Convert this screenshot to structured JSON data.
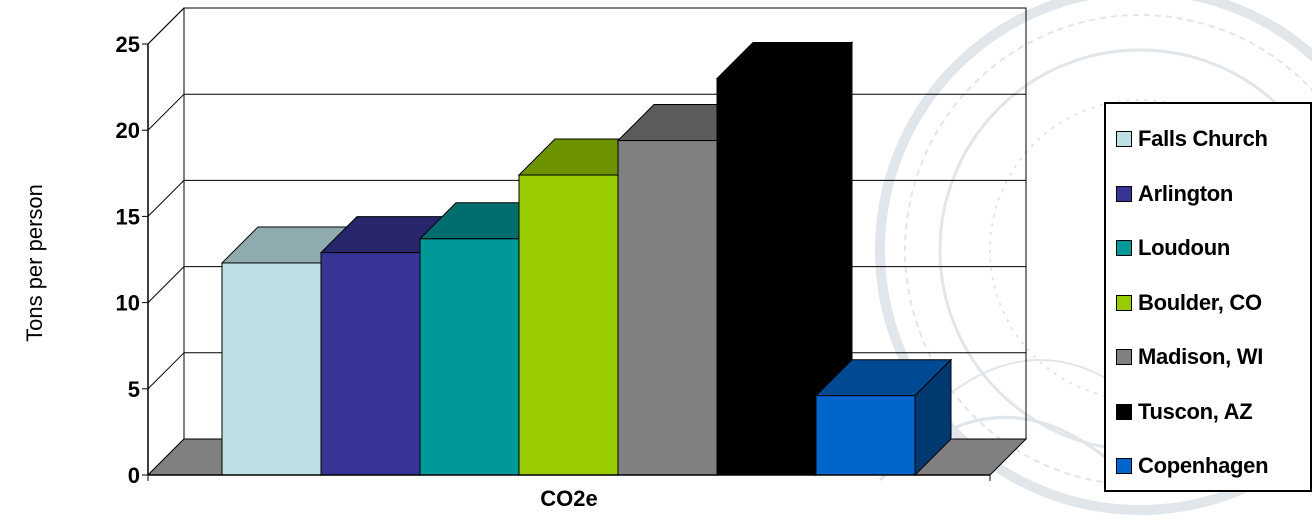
{
  "chart_data": {
    "type": "bar",
    "subtype": "3d-clustered-column",
    "categories": [
      "CO2e"
    ],
    "series": [
      {
        "name": "Falls Church",
        "values": [
          12.3
        ],
        "color": "#bde0e4"
      },
      {
        "name": "Arlington",
        "values": [
          12.9
        ],
        "color": "#363494"
      },
      {
        "name": "Loudoun",
        "values": [
          13.7
        ],
        "color": "#00999a"
      },
      {
        "name": "Boulder, CO",
        "values": [
          17.4
        ],
        "color": "#99cc00"
      },
      {
        "name": "Madison, WI",
        "values": [
          19.4
        ],
        "color": "#808080"
      },
      {
        "name": "Tuscon, AZ",
        "values": [
          23.0
        ],
        "color": "#000000"
      },
      {
        "name": "Copenhagen",
        "values": [
          4.6
        ],
        "color": "#0066cc"
      }
    ],
    "title": "",
    "xlabel": "CO2e",
    "ylabel": "Tons per person",
    "ylim": [
      0,
      25
    ],
    "yticks": [
      "0",
      "5",
      "10",
      "15",
      "20",
      "25"
    ],
    "grid": true,
    "legend": "right",
    "floor_color": "#808080"
  }
}
